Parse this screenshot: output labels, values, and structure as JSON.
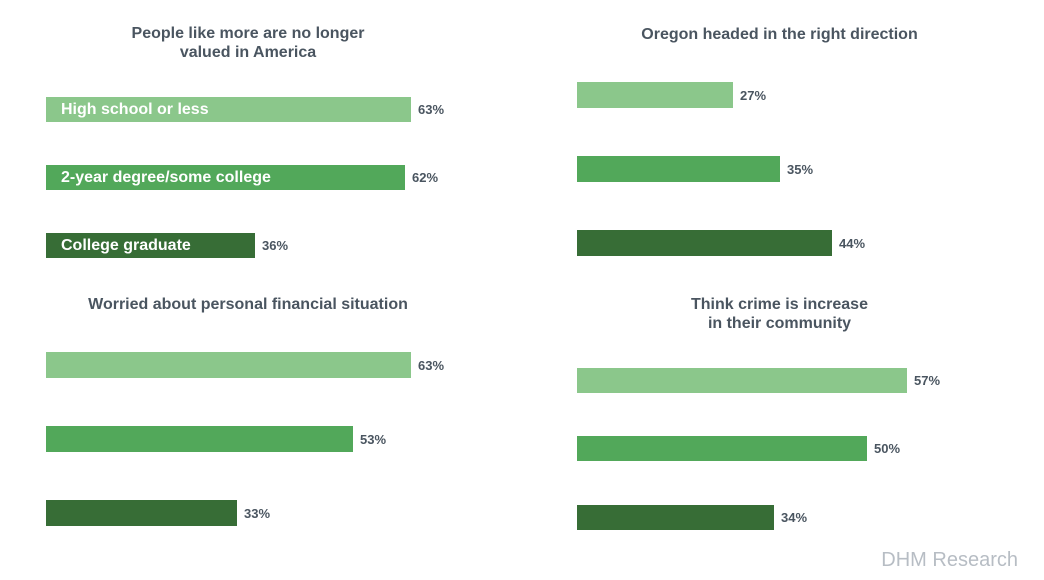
{
  "chart_data": [
    {
      "type": "bar",
      "orientation": "horizontal",
      "title": "People like more are no longer\nvalued in America",
      "categories": [
        "High school or less",
        "2-year degree/some college",
        "College graduate"
      ],
      "values": [
        63,
        62,
        36
      ],
      "value_labels": [
        "63%",
        "62%",
        "36%"
      ],
      "show_category_labels": true
    },
    {
      "type": "bar",
      "orientation": "horizontal",
      "title": "Oregon headed in the right direction",
      "categories": [
        "High school or less",
        "2-year degree/some college",
        "College graduate"
      ],
      "values": [
        27,
        35,
        44
      ],
      "value_labels": [
        "27%",
        "35%",
        "44%"
      ],
      "show_category_labels": false
    },
    {
      "type": "bar",
      "orientation": "horizontal",
      "title": "Worried about personal financial situation",
      "categories": [
        "High school or less",
        "2-year degree/some college",
        "College graduate"
      ],
      "values": [
        63,
        53,
        33
      ],
      "value_labels": [
        "63%",
        "53%",
        "33%"
      ],
      "show_category_labels": false
    },
    {
      "type": "bar",
      "orientation": "horizontal",
      "title": "Think crime is increase\nin their community",
      "categories": [
        "High school or less",
        "2-year degree/some college",
        "College graduate"
      ],
      "values": [
        57,
        50,
        34
      ],
      "value_labels": [
        "57%",
        "50%",
        "34%"
      ],
      "show_category_labels": false
    }
  ],
  "colors": {
    "high_school_or_less": "#8bc78b",
    "two_year_degree": "#52a85a",
    "college_graduate": "#376d36"
  },
  "watermark": "DHM Research"
}
